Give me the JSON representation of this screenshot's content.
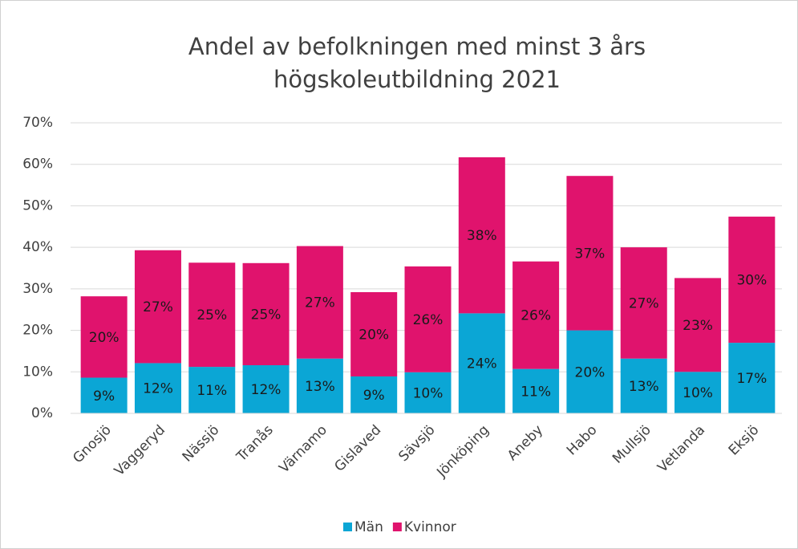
{
  "chart_data": {
    "type": "stacked_bar",
    "title": [
      "Andel av befolkningen med minst 3 års",
      "högskoleutbildning 2021"
    ],
    "categories": [
      "Gnosjö",
      "Vaggeryd",
      "Nässjö",
      "Tranås",
      "Värnamo",
      "Gislaved",
      "Sävsjö",
      "Jönköping",
      "Aneby",
      "Habo",
      "Mullsjö",
      "Vetlanda",
      "Eksjö"
    ],
    "series": [
      {
        "name": "Män",
        "color": "#0ba6d5",
        "values": [
          8.6,
          12.1,
          11.2,
          11.6,
          13.2,
          8.9,
          9.9,
          24.1,
          10.7,
          20.0,
          13.2,
          10.0,
          17.0
        ],
        "value_labels": [
          "9%",
          "12%",
          "11%",
          "12%",
          "13%",
          "9%",
          "10%",
          "24%",
          "11%",
          "20%",
          "13%",
          "10%",
          "17%"
        ]
      },
      {
        "name": "Kvinnor",
        "color": "#e0136d",
        "values": [
          19.6,
          27.2,
          25.1,
          24.6,
          27.1,
          20.3,
          25.5,
          37.6,
          25.9,
          37.2,
          26.8,
          22.6,
          30.4
        ],
        "value_labels": [
          "20%",
          "27%",
          "25%",
          "25%",
          "27%",
          "20%",
          "26%",
          "38%",
          "26%",
          "37%",
          "27%",
          "23%",
          "30%"
        ]
      }
    ],
    "ylim": [
      0,
      70
    ],
    "yticks": [
      {
        "value": 0,
        "label": "0%"
      },
      {
        "value": 10,
        "label": "10%"
      },
      {
        "value": 20,
        "label": "20%"
      },
      {
        "value": 30,
        "label": "30%"
      },
      {
        "value": 40,
        "label": "40%"
      },
      {
        "value": 50,
        "label": "50%"
      },
      {
        "value": 60,
        "label": "60%"
      },
      {
        "value": 70,
        "label": "70%"
      }
    ],
    "grid": true,
    "legend": "bottom"
  }
}
